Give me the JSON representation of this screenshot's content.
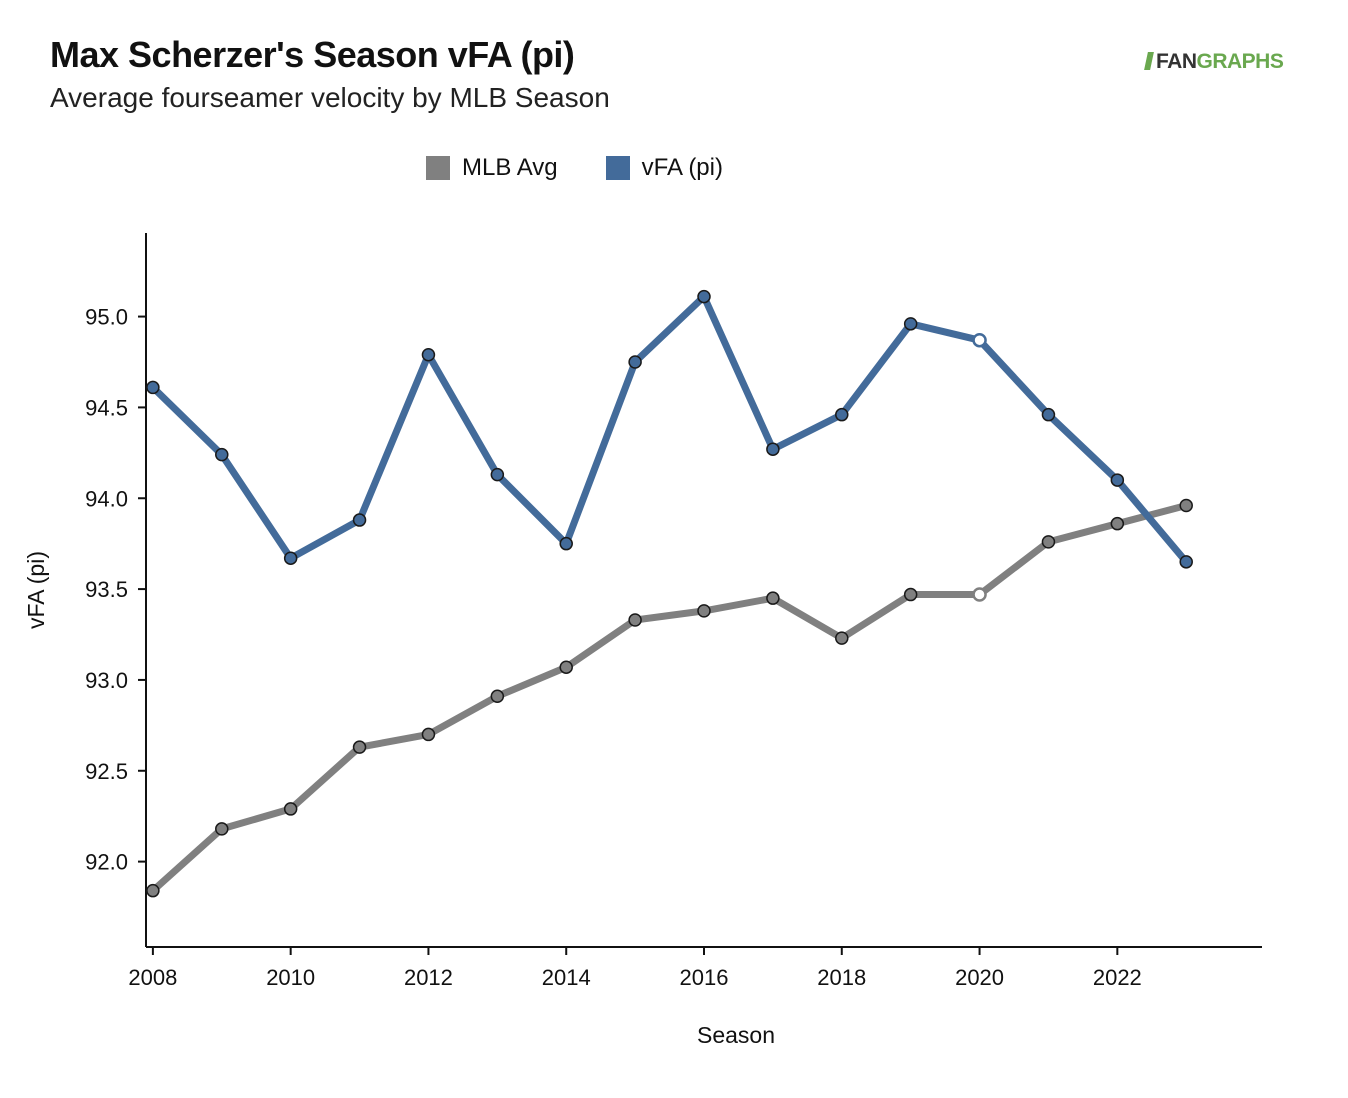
{
  "header": {
    "title": "Max Scherzer's Season vFA (pi)",
    "subtitle": "Average fourseamer velocity by MLB Season",
    "brand_prefix": "FAN",
    "brand_suffix": "GRAPHS"
  },
  "colors": {
    "mlb_avg": "#808080",
    "player": "#436b9a",
    "marker_stroke": "#1a1a1a"
  },
  "chart_data": {
    "type": "line",
    "title": "Max Scherzer's Season vFA (pi)",
    "subtitle": "Average fourseamer velocity by MLB Season",
    "xlabel": "Season",
    "ylabel": "vFA (pi)",
    "x": [
      2008,
      2009,
      2010,
      2011,
      2012,
      2013,
      2014,
      2015,
      2016,
      2017,
      2018,
      2019,
      2020,
      2021,
      2022,
      2023
    ],
    "x_ticks": [
      "2008",
      "2010",
      "2012",
      "2014",
      "2016",
      "2018",
      "2020",
      "2022"
    ],
    "y_ticks": [
      "92.0",
      "92.5",
      "93.0",
      "93.5",
      "94.0",
      "94.5",
      "95.0"
    ],
    "xlim": [
      2007.9,
      2024.1
    ],
    "ylim": [
      91.53,
      95.46
    ],
    "grid": false,
    "legend_position": "top",
    "series": [
      {
        "name": "MLB Avg",
        "color": "#808080",
        "values": [
          91.84,
          92.18,
          92.29,
          92.63,
          92.7,
          92.91,
          93.07,
          93.33,
          93.38,
          93.45,
          93.23,
          93.47,
          93.47,
          93.76,
          93.86,
          93.96
        ],
        "hollow_points": [
          2020
        ]
      },
      {
        "name": "vFA (pi)",
        "color": "#436b9a",
        "values": [
          94.61,
          94.24,
          93.67,
          93.88,
          94.79,
          94.13,
          93.75,
          94.75,
          95.11,
          94.27,
          94.46,
          94.96,
          94.87,
          94.46,
          94.1,
          93.65
        ],
        "hollow_points": [
          2020
        ]
      }
    ]
  }
}
